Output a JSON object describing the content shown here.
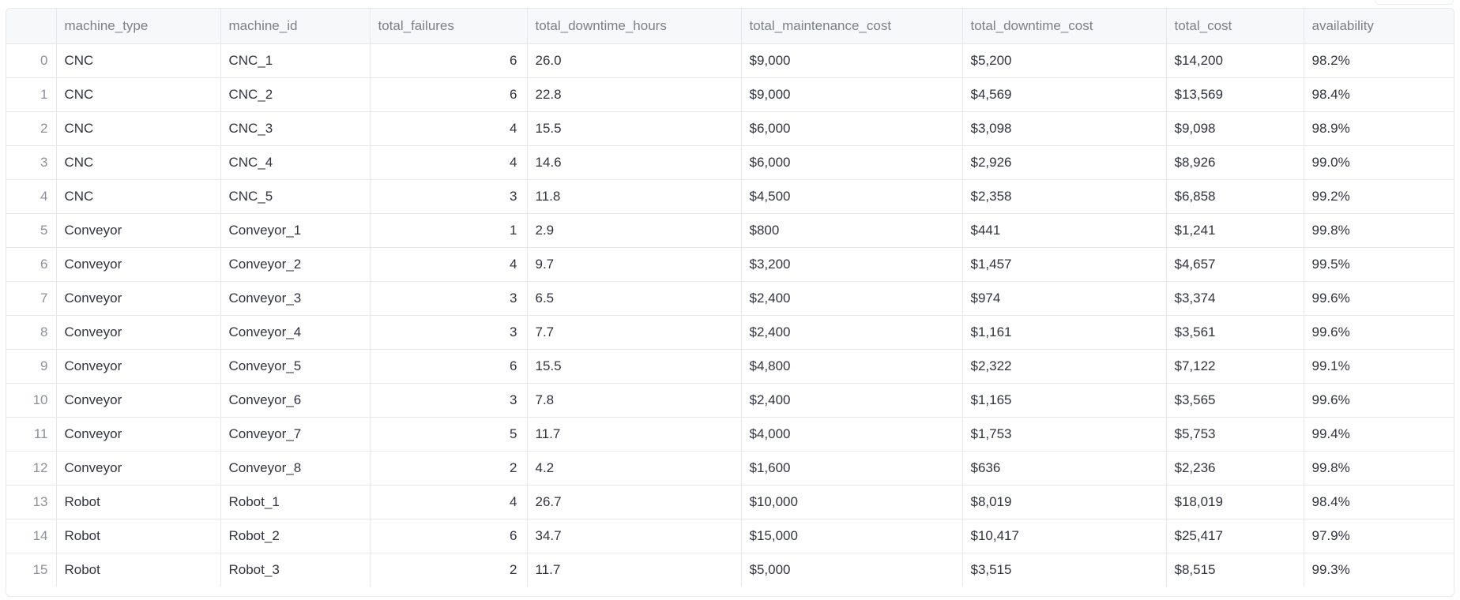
{
  "table": {
    "columns": [
      "",
      "machine_type",
      "machine_id",
      "total_failures",
      "total_downtime_hours",
      "total_maintenance_cost",
      "total_downtime_cost",
      "total_cost",
      "availability"
    ],
    "rows": [
      [
        "0",
        "CNC",
        "CNC_1",
        "6",
        "26.0",
        "$9,000",
        "$5,200",
        "$14,200",
        "98.2%"
      ],
      [
        "1",
        "CNC",
        "CNC_2",
        "6",
        "22.8",
        "$9,000",
        "$4,569",
        "$13,569",
        "98.4%"
      ],
      [
        "2",
        "CNC",
        "CNC_3",
        "4",
        "15.5",
        "$6,000",
        "$3,098",
        "$9,098",
        "98.9%"
      ],
      [
        "3",
        "CNC",
        "CNC_4",
        "4",
        "14.6",
        "$6,000",
        "$2,926",
        "$8,926",
        "99.0%"
      ],
      [
        "4",
        "CNC",
        "CNC_5",
        "3",
        "11.8",
        "$4,500",
        "$2,358",
        "$6,858",
        "99.2%"
      ],
      [
        "5",
        "Conveyor",
        "Conveyor_1",
        "1",
        "2.9",
        "$800",
        "$441",
        "$1,241",
        "99.8%"
      ],
      [
        "6",
        "Conveyor",
        "Conveyor_2",
        "4",
        "9.7",
        "$3,200",
        "$1,457",
        "$4,657",
        "99.5%"
      ],
      [
        "7",
        "Conveyor",
        "Conveyor_3",
        "3",
        "6.5",
        "$2,400",
        "$974",
        "$3,374",
        "99.6%"
      ],
      [
        "8",
        "Conveyor",
        "Conveyor_4",
        "3",
        "7.7",
        "$2,400",
        "$1,161",
        "$3,561",
        "99.6%"
      ],
      [
        "9",
        "Conveyor",
        "Conveyor_5",
        "6",
        "15.5",
        "$4,800",
        "$2,322",
        "$7,122",
        "99.1%"
      ],
      [
        "10",
        "Conveyor",
        "Conveyor_6",
        "3",
        "7.8",
        "$2,400",
        "$1,165",
        "$3,565",
        "99.6%"
      ],
      [
        "11",
        "Conveyor",
        "Conveyor_7",
        "5",
        "11.7",
        "$4,000",
        "$1,753",
        "$5,753",
        "99.4%"
      ],
      [
        "12",
        "Conveyor",
        "Conveyor_8",
        "2",
        "4.2",
        "$1,600",
        "$636",
        "$2,236",
        "99.8%"
      ],
      [
        "13",
        "Robot",
        "Robot_1",
        "4",
        "26.7",
        "$10,000",
        "$8,019",
        "$18,019",
        "98.4%"
      ],
      [
        "14",
        "Robot",
        "Robot_2",
        "6",
        "34.7",
        "$15,000",
        "$10,417",
        "$25,417",
        "97.9%"
      ],
      [
        "15",
        "Robot",
        "Robot_3",
        "2",
        "11.7",
        "$5,000",
        "$3,515",
        "$8,515",
        "99.3%"
      ]
    ]
  }
}
